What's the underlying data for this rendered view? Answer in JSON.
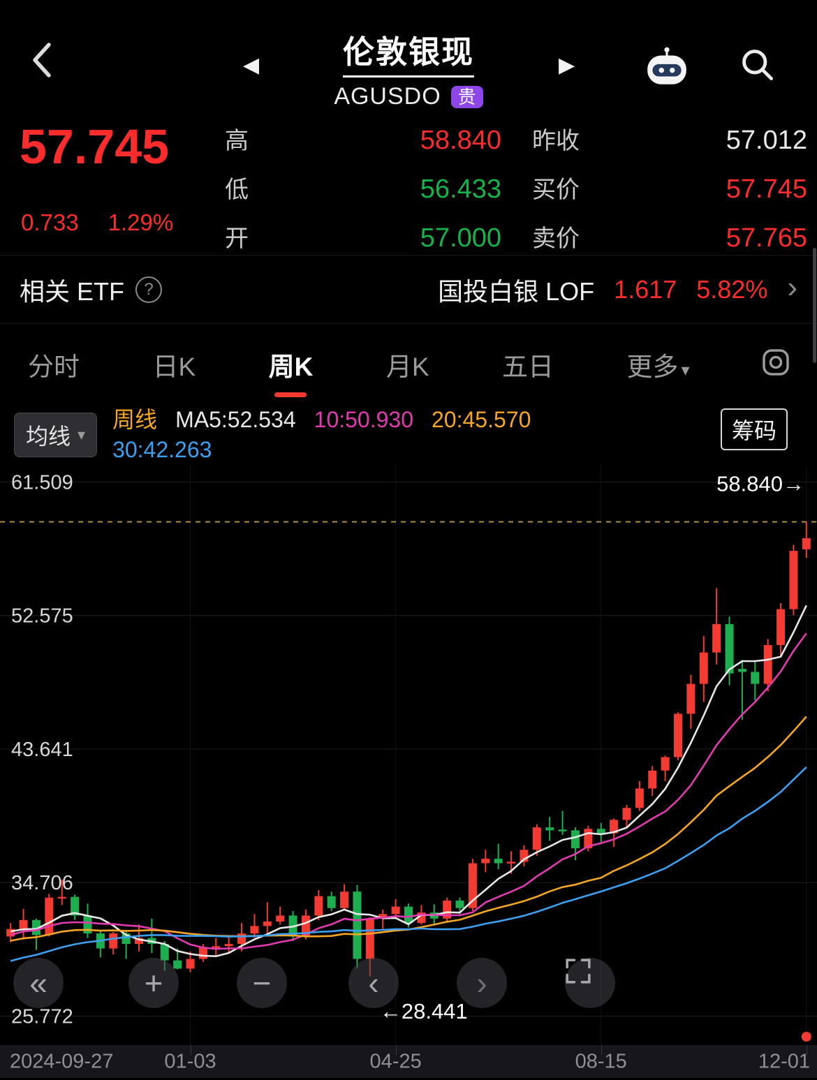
{
  "colors": {
    "red": "#fb2c2c",
    "green": "#16b24b",
    "text_white": "#e9e9e9",
    "accent_purple": "#8d46e8"
  },
  "icons": {
    "prev_triangle": "◀",
    "next_triangle": "▶",
    "caret_down": "▾",
    "chevron_right": "›",
    "help_mark": "?"
  },
  "header": {
    "title": "伦敦银现",
    "symbol": "AGUSDO",
    "badge": "贵"
  },
  "quote": {
    "price": "57.745",
    "change": "0.733",
    "change_pct": "1.29%",
    "mid": [
      {
        "label": "高",
        "value": "58.840",
        "color": "#fb2c2c"
      },
      {
        "label": "低",
        "value": "56.433",
        "color": "#16b24b"
      },
      {
        "label": "开",
        "value": "57.000",
        "color": "#16b24b"
      }
    ],
    "right": [
      {
        "label": "昨收",
        "value": "57.012",
        "color": "#e9e9e9"
      },
      {
        "label": "买价",
        "value": "57.745",
        "color": "#fb2c2c"
      },
      {
        "label": "卖价",
        "value": "57.765",
        "color": "#fb2c2c"
      }
    ]
  },
  "etf": {
    "label": "相关 ETF",
    "name": "国投白银 LOF",
    "value": "1.617",
    "change_pct": "5.82%"
  },
  "tabs": {
    "items": [
      "分时",
      "日K",
      "周K",
      "月K",
      "五日",
      "更多"
    ],
    "active_index": 2
  },
  "indicator": {
    "ma_button": "均线",
    "period_label": "周线",
    "ma5_label": "MA5:52.534",
    "ma10_label": "10:50.930",
    "ma20_label": "20:45.570",
    "ma30_label": "30:42.263",
    "chips_label": "筹码"
  },
  "chart_buttons": [
    {
      "glyph": "«"
    },
    {
      "glyph": "+"
    },
    {
      "glyph": "−"
    },
    {
      "glyph": "‹"
    },
    {
      "glyph": "›"
    },
    {
      "glyph": ""
    }
  ],
  "chart_data": {
    "type": "candlestick",
    "title": "伦敦银现 周K",
    "y_ticks": [
      61.509,
      52.575,
      43.641,
      34.706,
      25.772
    ],
    "value_range": {
      "min": 24.3,
      "max": 62.6
    },
    "high_label": "58.840→",
    "high_line_value": 58.84,
    "low_label": "←28.441",
    "low_value": 28.441,
    "low_label_index": 28,
    "x_labels": [
      {
        "text": "2024-09-27",
        "index": 0
      },
      {
        "text": "01-03",
        "index": 14
      },
      {
        "text": "04-25",
        "index": 30
      },
      {
        "text": "08-15",
        "index": 46
      },
      {
        "text": "12-01",
        "index": 62
      }
    ],
    "colors": {
      "up": "#f23b32",
      "down": "#1fae4f",
      "grid": "#1d1d22",
      "vgrid": "#131317",
      "high_line": "#c9a84c",
      "tick_text": "#d8d8d8",
      "annotation_text": "#ffffff"
    },
    "ma_settings": [
      {
        "period": 5,
        "color": "#e8e8e8"
      },
      {
        "period": 10,
        "color": "#e23bb0"
      },
      {
        "period": 20,
        "color": "#f5a623"
      },
      {
        "period": 30,
        "color": "#3d9ff0"
      }
    ],
    "pre_closes": [
      25.0,
      25.3,
      25.8,
      26.2,
      26.0,
      26.5,
      27.0,
      27.4,
      27.1,
      27.8,
      28.4,
      29.0,
      29.6,
      30.2,
      29.8,
      30.5,
      31.0,
      31.4,
      30.9,
      31.3,
      30.6,
      29.8,
      30.4,
      31.0,
      31.6,
      32.0,
      31.5,
      31.1,
      31.6,
      31.4
    ],
    "candles": [
      [
        "2024-09-27",
        31.1,
        32.0,
        30.7,
        31.6
      ],
      [
        "10-04",
        31.6,
        32.95,
        30.9,
        32.2
      ],
      [
        "10-11",
        32.2,
        32.3,
        30.2,
        31.2
      ],
      [
        "10-18",
        31.2,
        33.95,
        31.1,
        33.7
      ],
      [
        "10-25",
        33.7,
        34.9,
        33.2,
        33.75
      ],
      [
        "11-01",
        33.75,
        33.9,
        32.2,
        32.5
      ],
      [
        "11-08",
        32.5,
        33.3,
        31.0,
        31.3
      ],
      [
        "11-15",
        31.3,
        31.5,
        29.7,
        30.3
      ],
      [
        "11-22",
        30.3,
        31.4,
        29.9,
        31.3
      ],
      [
        "11-29",
        31.3,
        31.5,
        29.6,
        30.6
      ],
      [
        "12-06",
        30.6,
        31.9,
        30.1,
        31.0
      ],
      [
        "12-13",
        31.0,
        32.3,
        30.0,
        30.6
      ],
      [
        "12-20",
        30.6,
        30.8,
        28.8,
        29.5
      ],
      [
        "12-27",
        29.5,
        30.3,
        28.9,
        28.95
      ],
      [
        "01-03",
        28.95,
        30.1,
        28.7,
        29.6
      ],
      [
        "01-10",
        29.6,
        30.6,
        29.4,
        30.4
      ],
      [
        "01-17",
        30.4,
        31.0,
        29.8,
        30.45
      ],
      [
        "01-24",
        30.45,
        31.1,
        30.0,
        30.6
      ],
      [
        "01-31",
        30.6,
        32.0,
        30.1,
        31.3
      ],
      [
        "02-07",
        31.3,
        32.6,
        31.0,
        31.8
      ],
      [
        "02-14",
        31.8,
        33.4,
        31.3,
        32.1
      ],
      [
        "02-21",
        32.1,
        33.1,
        31.9,
        32.5
      ],
      [
        "02-28",
        32.5,
        32.8,
        30.8,
        31.1
      ],
      [
        "03-07",
        31.1,
        32.9,
        30.9,
        32.5
      ],
      [
        "03-14",
        32.5,
        34.2,
        32.2,
        33.8
      ],
      [
        "03-21",
        33.8,
        34.1,
        32.8,
        33.0
      ],
      [
        "03-28",
        33.0,
        34.6,
        32.9,
        34.1
      ],
      [
        "04-04",
        34.1,
        34.55,
        29.0,
        29.6
      ],
      [
        "04-11",
        29.6,
        32.4,
        28.44,
        32.3
      ],
      [
        "04-18",
        32.3,
        32.9,
        31.6,
        32.6
      ],
      [
        "04-25",
        32.6,
        33.6,
        32.3,
        33.1
      ],
      [
        "05-02",
        33.1,
        33.3,
        31.7,
        32.0
      ],
      [
        "05-09",
        32.0,
        33.2,
        31.9,
        32.7
      ],
      [
        "05-16",
        32.7,
        33.25,
        31.9,
        32.3
      ],
      [
        "05-23",
        32.3,
        33.7,
        32.0,
        33.5
      ],
      [
        "05-30",
        33.5,
        33.7,
        32.6,
        33.0
      ],
      [
        "06-06",
        33.0,
        36.3,
        32.8,
        36.0
      ],
      [
        "06-13",
        36.0,
        36.9,
        35.4,
        36.3
      ],
      [
        "06-20",
        36.3,
        37.3,
        35.6,
        36.0
      ],
      [
        "06-27",
        36.0,
        36.8,
        35.3,
        36.1
      ],
      [
        "07-04",
        36.1,
        37.2,
        35.8,
        36.9
      ],
      [
        "07-11",
        36.9,
        38.6,
        36.5,
        38.4
      ],
      [
        "07-18",
        38.4,
        39.1,
        37.5,
        38.2
      ],
      [
        "07-25",
        38.25,
        39.5,
        37.9,
        38.2
      ],
      [
        "08-01",
        38.2,
        38.4,
        36.2,
        37.0
      ],
      [
        "08-08",
        37.0,
        38.5,
        36.8,
        38.3
      ],
      [
        "08-15",
        38.3,
        38.7,
        37.4,
        38.0
      ],
      [
        "08-22",
        38.0,
        39.0,
        37.1,
        38.9
      ],
      [
        "08-29",
        38.9,
        39.9,
        38.3,
        39.7
      ],
      [
        "09-05",
        39.7,
        41.5,
        39.5,
        41.0
      ],
      [
        "09-12",
        41.0,
        42.5,
        40.5,
        42.2
      ],
      [
        "09-19",
        42.2,
        43.2,
        41.5,
        43.1
      ],
      [
        "09-26",
        43.1,
        46.1,
        42.9,
        46.0
      ],
      [
        "10-03",
        46.0,
        48.6,
        45.0,
        48.0
      ],
      [
        "10-10",
        48.0,
        51.2,
        46.8,
        50.1
      ],
      [
        "10-17",
        50.1,
        54.4,
        49.3,
        52.0
      ],
      [
        "10-24",
        52.0,
        52.5,
        47.9,
        48.7
      ],
      [
        "10-31",
        49.0,
        49.6,
        45.6,
        48.8
      ],
      [
        "11-07",
        48.8,
        49.5,
        46.9,
        48.0
      ],
      [
        "11-14",
        48.0,
        51.0,
        47.5,
        50.6
      ],
      [
        "11-21",
        50.6,
        53.4,
        49.8,
        53.0
      ],
      [
        "11-28",
        53.0,
        57.3,
        52.6,
        56.9
      ],
      [
        "12-01",
        57.0,
        58.84,
        56.433,
        57.745
      ]
    ]
  }
}
